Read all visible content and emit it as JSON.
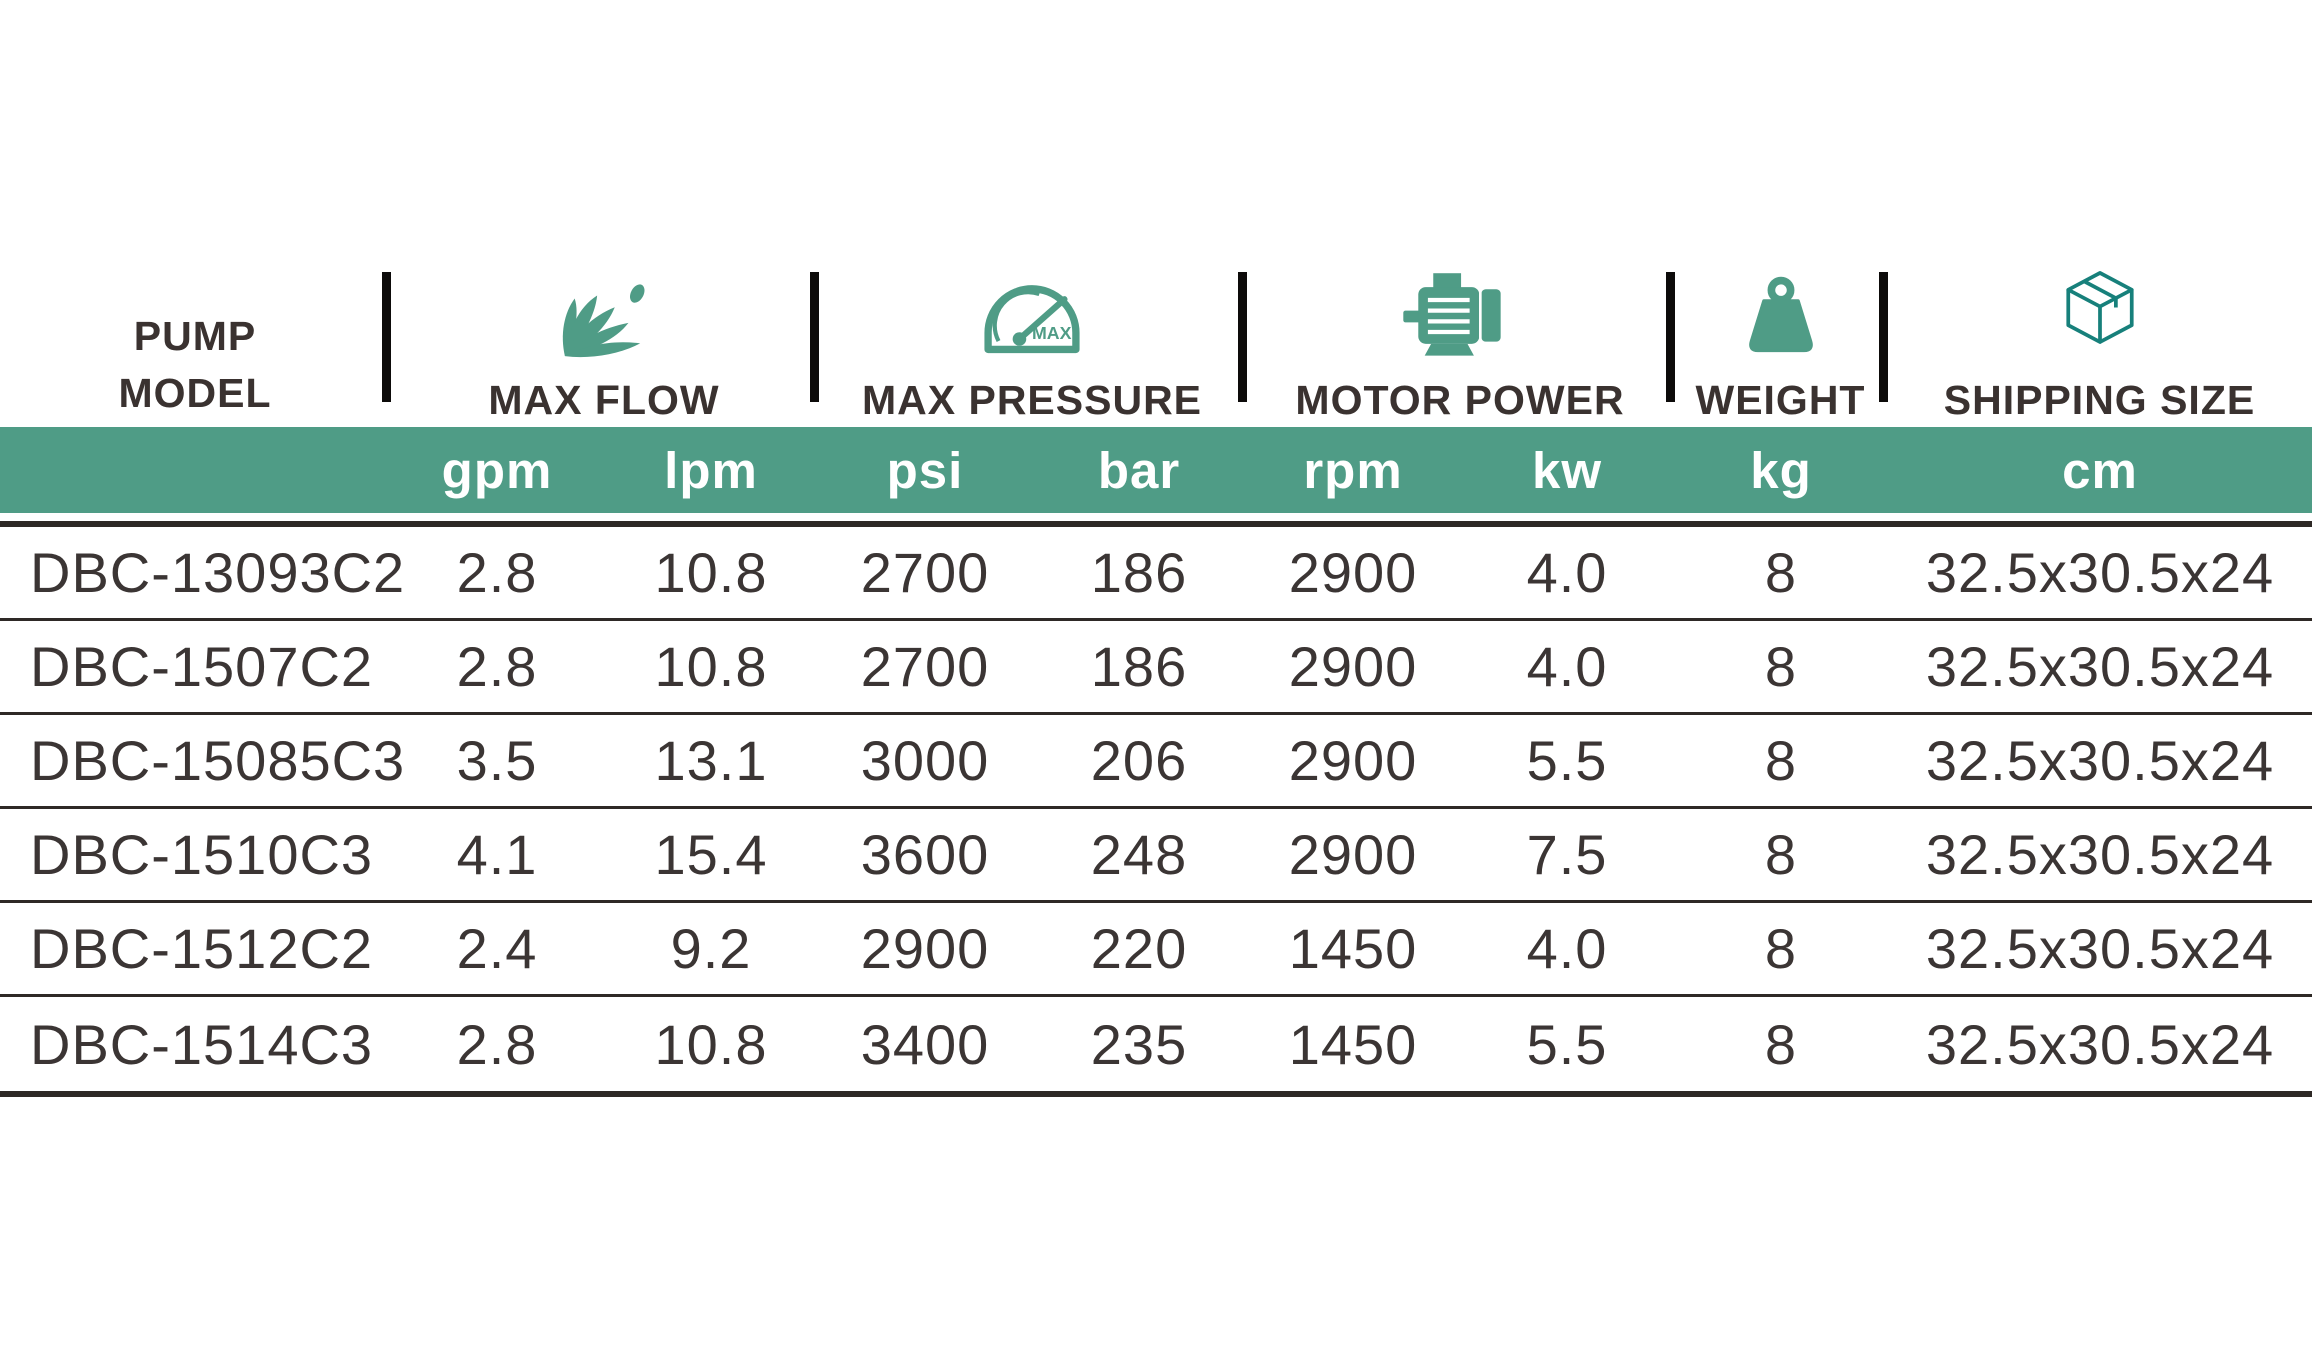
{
  "colors": {
    "teal": "#4F9C86",
    "teal_dark": "#17807B",
    "header_text": "#3A3230",
    "cell_text": "#3B3534",
    "row_line": "#2E2926",
    "divider_bar": "#0D0B0A",
    "unit_text": "#FFFFFF"
  },
  "header": {
    "pump_model": {
      "line1": "PUMP",
      "line2": "MODEL"
    },
    "groups": [
      {
        "label": "MAX FLOW",
        "icon": "water-splash-icon"
      },
      {
        "label": "MAX PRESSURE",
        "icon": "pressure-gauge-icon",
        "gauge_label": "MAX"
      },
      {
        "label": "MOTOR POWER",
        "icon": "electric-motor-icon"
      },
      {
        "label": "WEIGHT",
        "icon": "weight-icon"
      },
      {
        "label": "SHIPPING SIZE",
        "icon": "shipping-box-icon"
      }
    ],
    "units": [
      "gpm",
      "lpm",
      "psi",
      "bar",
      "rpm",
      "kw",
      "kg",
      "cm"
    ]
  },
  "table": {
    "columns": [
      "model",
      "gpm",
      "lpm",
      "psi",
      "bar",
      "rpm",
      "kw",
      "kg",
      "cm"
    ],
    "rows": [
      {
        "model": "DBC-13093C2",
        "gpm": "2.8",
        "lpm": "10.8",
        "psi": "2700",
        "bar": "186",
        "rpm": "2900",
        "kw": "4.0",
        "kg": "8",
        "cm": "32.5x30.5x24"
      },
      {
        "model": "DBC-1507C2",
        "gpm": "2.8",
        "lpm": "10.8",
        "psi": "2700",
        "bar": "186",
        "rpm": "2900",
        "kw": "4.0",
        "kg": "8",
        "cm": "32.5x30.5x24"
      },
      {
        "model": "DBC-15085C3",
        "gpm": "3.5",
        "lpm": "13.1",
        "psi": "3000",
        "bar": "206",
        "rpm": "2900",
        "kw": "5.5",
        "kg": "8",
        "cm": "32.5x30.5x24"
      },
      {
        "model": "DBC-1510C3",
        "gpm": "4.1",
        "lpm": "15.4",
        "psi": "3600",
        "bar": "248",
        "rpm": "2900",
        "kw": "7.5",
        "kg": "8",
        "cm": "32.5x30.5x24"
      },
      {
        "model": "DBC-1512C2",
        "gpm": "2.4",
        "lpm": "9.2",
        "psi": "2900",
        "bar": "220",
        "rpm": "1450",
        "kw": "4.0",
        "kg": "8",
        "cm": "32.5x30.5x24"
      },
      {
        "model": "DBC-1514C3",
        "gpm": "2.8",
        "lpm": "10.8",
        "psi": "3400",
        "bar": "235",
        "rpm": "1450",
        "kw": "5.5",
        "kg": "8",
        "cm": "32.5x30.5x24"
      }
    ]
  }
}
